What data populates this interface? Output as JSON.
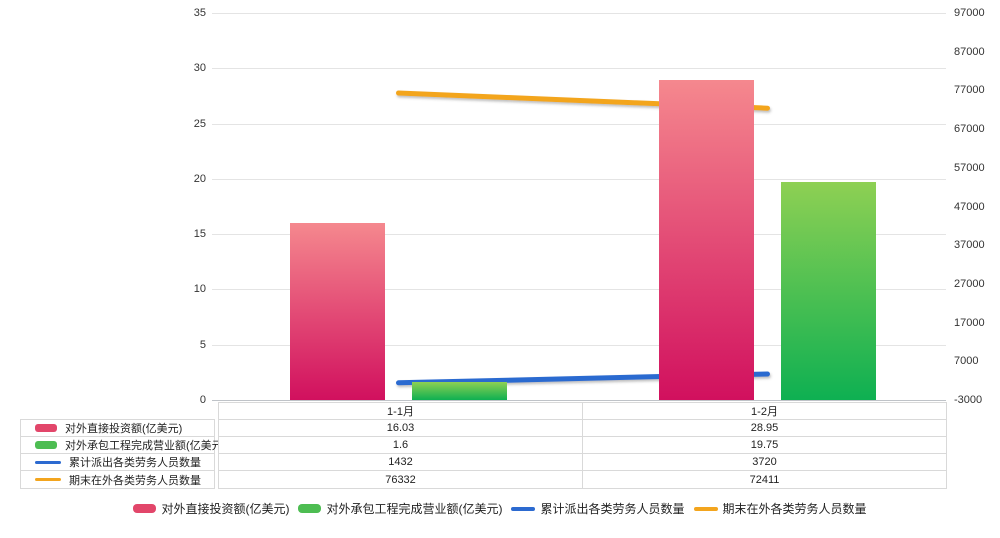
{
  "chart_data": {
    "type": "combo-bar-line",
    "categories": [
      "1-1月",
      "1-2月"
    ],
    "series": [
      {
        "name": "对外直接投资额(亿美元)",
        "type": "bar",
        "axis": "left",
        "values": [
          16.03,
          28.95
        ],
        "values_display": [
          "16.03",
          "28.95"
        ],
        "gradient_top": "#f5888e",
        "gradient_bottom": "#d1105e",
        "swatch_color": "#e2466a"
      },
      {
        "name": "对外承包工程完成营业额(亿美元)",
        "type": "bar",
        "axis": "left",
        "values": [
          1.6,
          19.75
        ],
        "values_display": [
          "1.6",
          "19.75"
        ],
        "gradient_top": "#8ed053",
        "gradient_bottom": "#0eb052",
        "swatch_color": "#4dbd52"
      },
      {
        "name": "累计派出各类劳务人员数量",
        "type": "line",
        "axis": "right",
        "values": [
          1432,
          3720
        ],
        "values_display": [
          "1432",
          "3720"
        ],
        "color": "#2c6ad0"
      },
      {
        "name": "期末在外各类劳务人员数量",
        "type": "line",
        "axis": "right",
        "values": [
          76332,
          72411
        ],
        "values_display": [
          "76332",
          "72411"
        ],
        "color": "#f3a51e"
      }
    ],
    "left_axis": {
      "min": 0,
      "max": 35,
      "tick_labels": [
        "0",
        "5",
        "10",
        "15",
        "20",
        "25",
        "30",
        "35"
      ]
    },
    "right_axis": {
      "min": -3000,
      "max": 97000,
      "tick_labels": [
        "-3000",
        "7000",
        "17000",
        "27000",
        "37000",
        "47000",
        "57000",
        "67000",
        "77000",
        "87000",
        "97000"
      ]
    },
    "grid": true,
    "legend_position": "bottom",
    "data_table_shown": true
  },
  "styles": {
    "gridline_color": "#e4e4e4",
    "baseline_color": "#bfc3c8",
    "axis_text_color": "#333333",
    "table_border_color": "#d9d9d9",
    "table_text_color": "#222222",
    "background": "#ffffff"
  }
}
